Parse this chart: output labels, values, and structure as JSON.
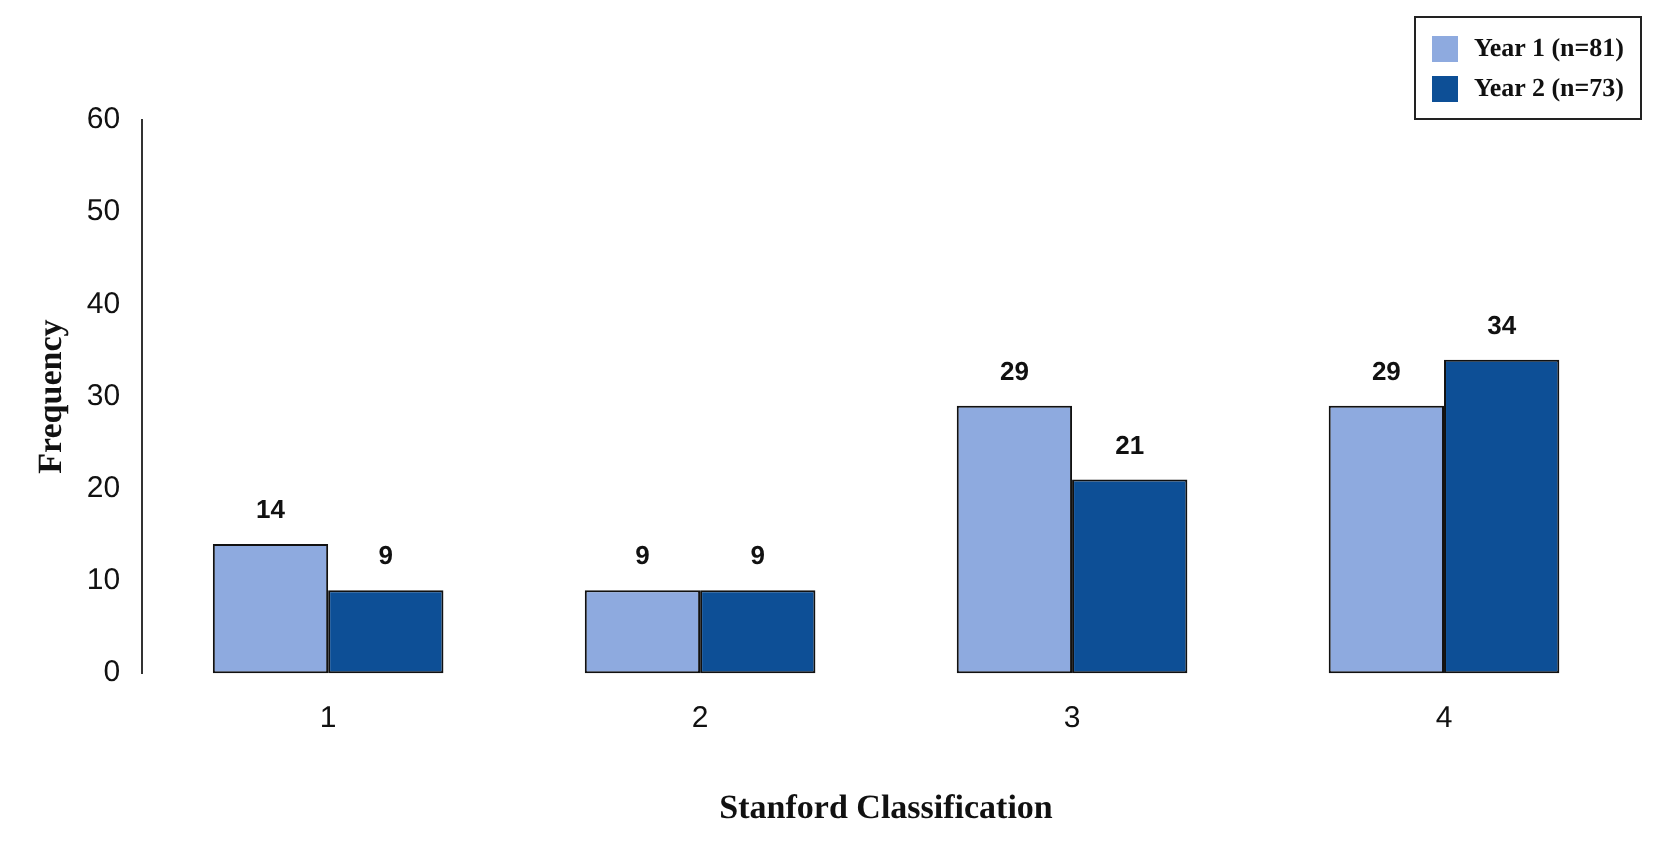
{
  "chart_data": {
    "type": "bar",
    "xlabel": "Stanford Classification",
    "ylabel": "Frequency",
    "categories": [
      "1",
      "2",
      "3",
      "4"
    ],
    "series": [
      {
        "name": "Year 1 (n=81)",
        "color": "#8eaadf",
        "values": [
          14,
          9,
          29,
          29
        ]
      },
      {
        "name": "Year 2 (n=73)",
        "color": "#0d4f96",
        "values": [
          9,
          9,
          21,
          34
        ]
      }
    ],
    "ylim": [
      0,
      60
    ],
    "yticks": [
      0,
      10,
      20,
      30,
      40,
      50,
      60
    ],
    "grid": false,
    "legend": "top right",
    "data_labels": true
  }
}
